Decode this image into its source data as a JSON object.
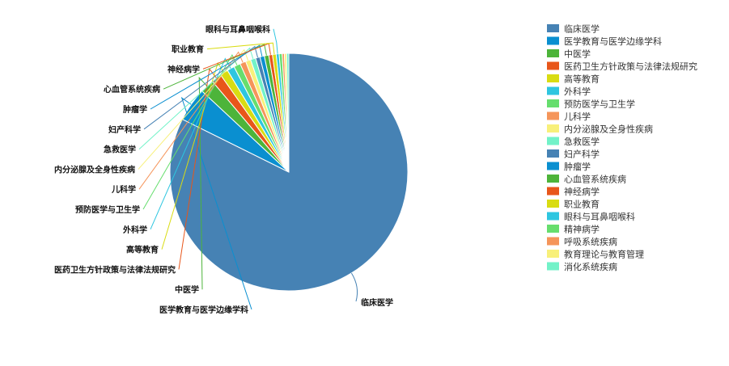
{
  "chart_data": {
    "type": "pie",
    "colors": [
      "#4682B4",
      "#0A8FD0",
      "#4DB43A",
      "#E8561A",
      "#D9DC12",
      "#2EC6E0",
      "#66DE6E",
      "#F5955A",
      "#F8F07A",
      "#72F2C8"
    ],
    "slices": [
      {
        "name": "临床医学",
        "value": 821
      },
      {
        "name": "医学教育与医学边缘学科",
        "value": 46
      },
      {
        "name": "中医学",
        "value": 19
      },
      {
        "name": "医药卫生方针政策与法律法规研究",
        "value": 14
      },
      {
        "name": "高等教育",
        "value": 11
      },
      {
        "name": "外科学",
        "value": 10
      },
      {
        "name": "预防医学与卫生学",
        "value": 9
      },
      {
        "name": "儿科学",
        "value": 8
      },
      {
        "name": "内分泌腺及全身性疾病",
        "value": 7
      },
      {
        "name": "急救医学",
        "value": 7
      },
      {
        "name": "妇产科学",
        "value": 6
      },
      {
        "name": "肿瘤学",
        "value": 6
      },
      {
        "name": "心血管系统疾病",
        "value": 6
      },
      {
        "name": "神经病学",
        "value": 5
      },
      {
        "name": "职业教育",
        "value": 5
      },
      {
        "name": "眼科与耳鼻咽喉科",
        "value": 4
      },
      {
        "name": "精神病学",
        "value": 4
      },
      {
        "name": "呼吸系统疾病",
        "value": 3
      },
      {
        "name": "教育理论与教育管理",
        "value": 3
      },
      {
        "name": "消化系统疾病",
        "value": 3
      }
    ],
    "labeled": [
      "临床医学",
      "医学教育与医学边缘学科",
      "中医学",
      "医药卫生方针政策与法律法规研究",
      "高等教育",
      "外科学",
      "预防医学与卫生学",
      "儿科学",
      "内分泌腺及全身性疾病",
      "急救医学",
      "妇产科学",
      "肿瘤学",
      "心血管系统疾病",
      "神经病学",
      "职业教育",
      "眼科与耳鼻咽喉科"
    ],
    "legend_position": "right"
  }
}
